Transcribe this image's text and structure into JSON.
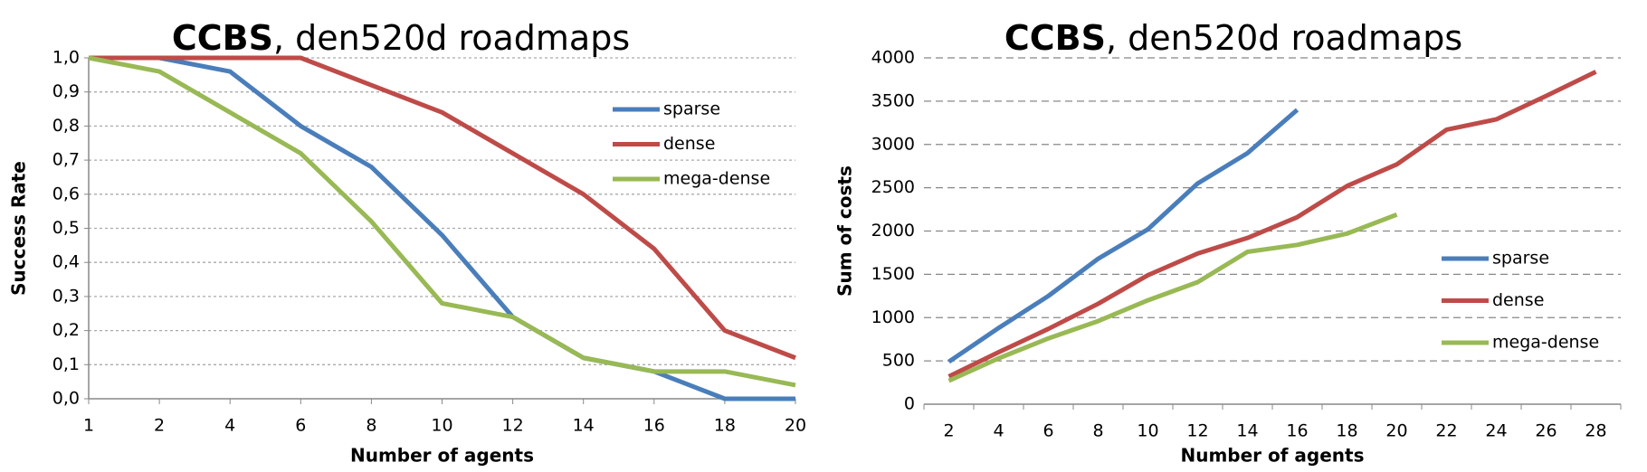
{
  "chart_data": [
    {
      "type": "line",
      "title_parts": [
        "CCBS",
        ", den520d roadmaps"
      ],
      "x_label": "Number of agents",
      "y_label": "Success Rate",
      "categories": [
        "1",
        "2",
        "4",
        "6",
        "8",
        "10",
        "12",
        "14",
        "16",
        "18",
        "20"
      ],
      "ylim": [
        0,
        1
      ],
      "yticks": [
        {
          "value": 0,
          "label": "0,0"
        },
        {
          "value": 0.1,
          "label": "0,1"
        },
        {
          "value": 0.2,
          "label": "0,2"
        },
        {
          "value": 0.3,
          "label": "0,3"
        },
        {
          "value": 0.4,
          "label": "0,4"
        },
        {
          "value": 0.5,
          "label": "0,5"
        },
        {
          "value": 0.6,
          "label": "0,6"
        },
        {
          "value": 0.7,
          "label": "0,7"
        },
        {
          "value": 0.8,
          "label": "0,8"
        },
        {
          "value": 0.9,
          "label": "0,9"
        },
        {
          "value": 1,
          "label": "1,0"
        }
      ],
      "grid": true,
      "legend": "upper right",
      "series": [
        {
          "name": "sparse",
          "color": "#4a7ebb",
          "values": [
            1,
            1,
            0.96,
            0.8,
            0.68,
            0.48,
            0.24,
            0.12,
            0.08,
            0,
            0
          ]
        },
        {
          "name": "dense",
          "color": "#be4b48",
          "values": [
            1,
            1,
            1,
            1,
            0.92,
            0.84,
            0.72,
            0.6,
            0.44,
            0.2,
            0.12
          ]
        },
        {
          "name": "mega-dense",
          "color": "#98b954",
          "values": [
            1,
            0.96,
            0.84,
            0.72,
            0.52,
            0.28,
            0.24,
            0.12,
            0.08,
            0.08,
            0.04
          ]
        }
      ]
    },
    {
      "type": "line",
      "title_parts": [
        "CCBS",
        ", den520d roadmaps"
      ],
      "x_label": "Number of agents",
      "y_label": "Sum of costs",
      "categories": [
        "2",
        "4",
        "6",
        "8",
        "10",
        "12",
        "14",
        "16",
        "18",
        "20",
        "22",
        "24",
        "26",
        "28"
      ],
      "ylim": [
        0,
        4000
      ],
      "yticks": [
        0,
        500,
        1000,
        1500,
        2000,
        2500,
        3000,
        3500,
        4000
      ],
      "grid": true,
      "legend": "lower right",
      "series": [
        {
          "name": "sparse",
          "color": "#4a7ebb",
          "values": [
            490,
            880,
            1250,
            1680,
            2020,
            2550,
            2900,
            3400,
            null,
            null,
            null,
            null,
            null,
            null
          ]
        },
        {
          "name": "dense",
          "color": "#be4b48",
          "values": [
            320,
            600,
            870,
            1160,
            1490,
            1740,
            1920,
            2160,
            2520,
            2770,
            3170,
            3290,
            3560,
            3840
          ]
        },
        {
          "name": "mega-dense",
          "color": "#98b954",
          "values": [
            270,
            530,
            760,
            960,
            1200,
            1410,
            1760,
            1840,
            1970,
            2190,
            null,
            null,
            null,
            null
          ]
        }
      ]
    }
  ]
}
